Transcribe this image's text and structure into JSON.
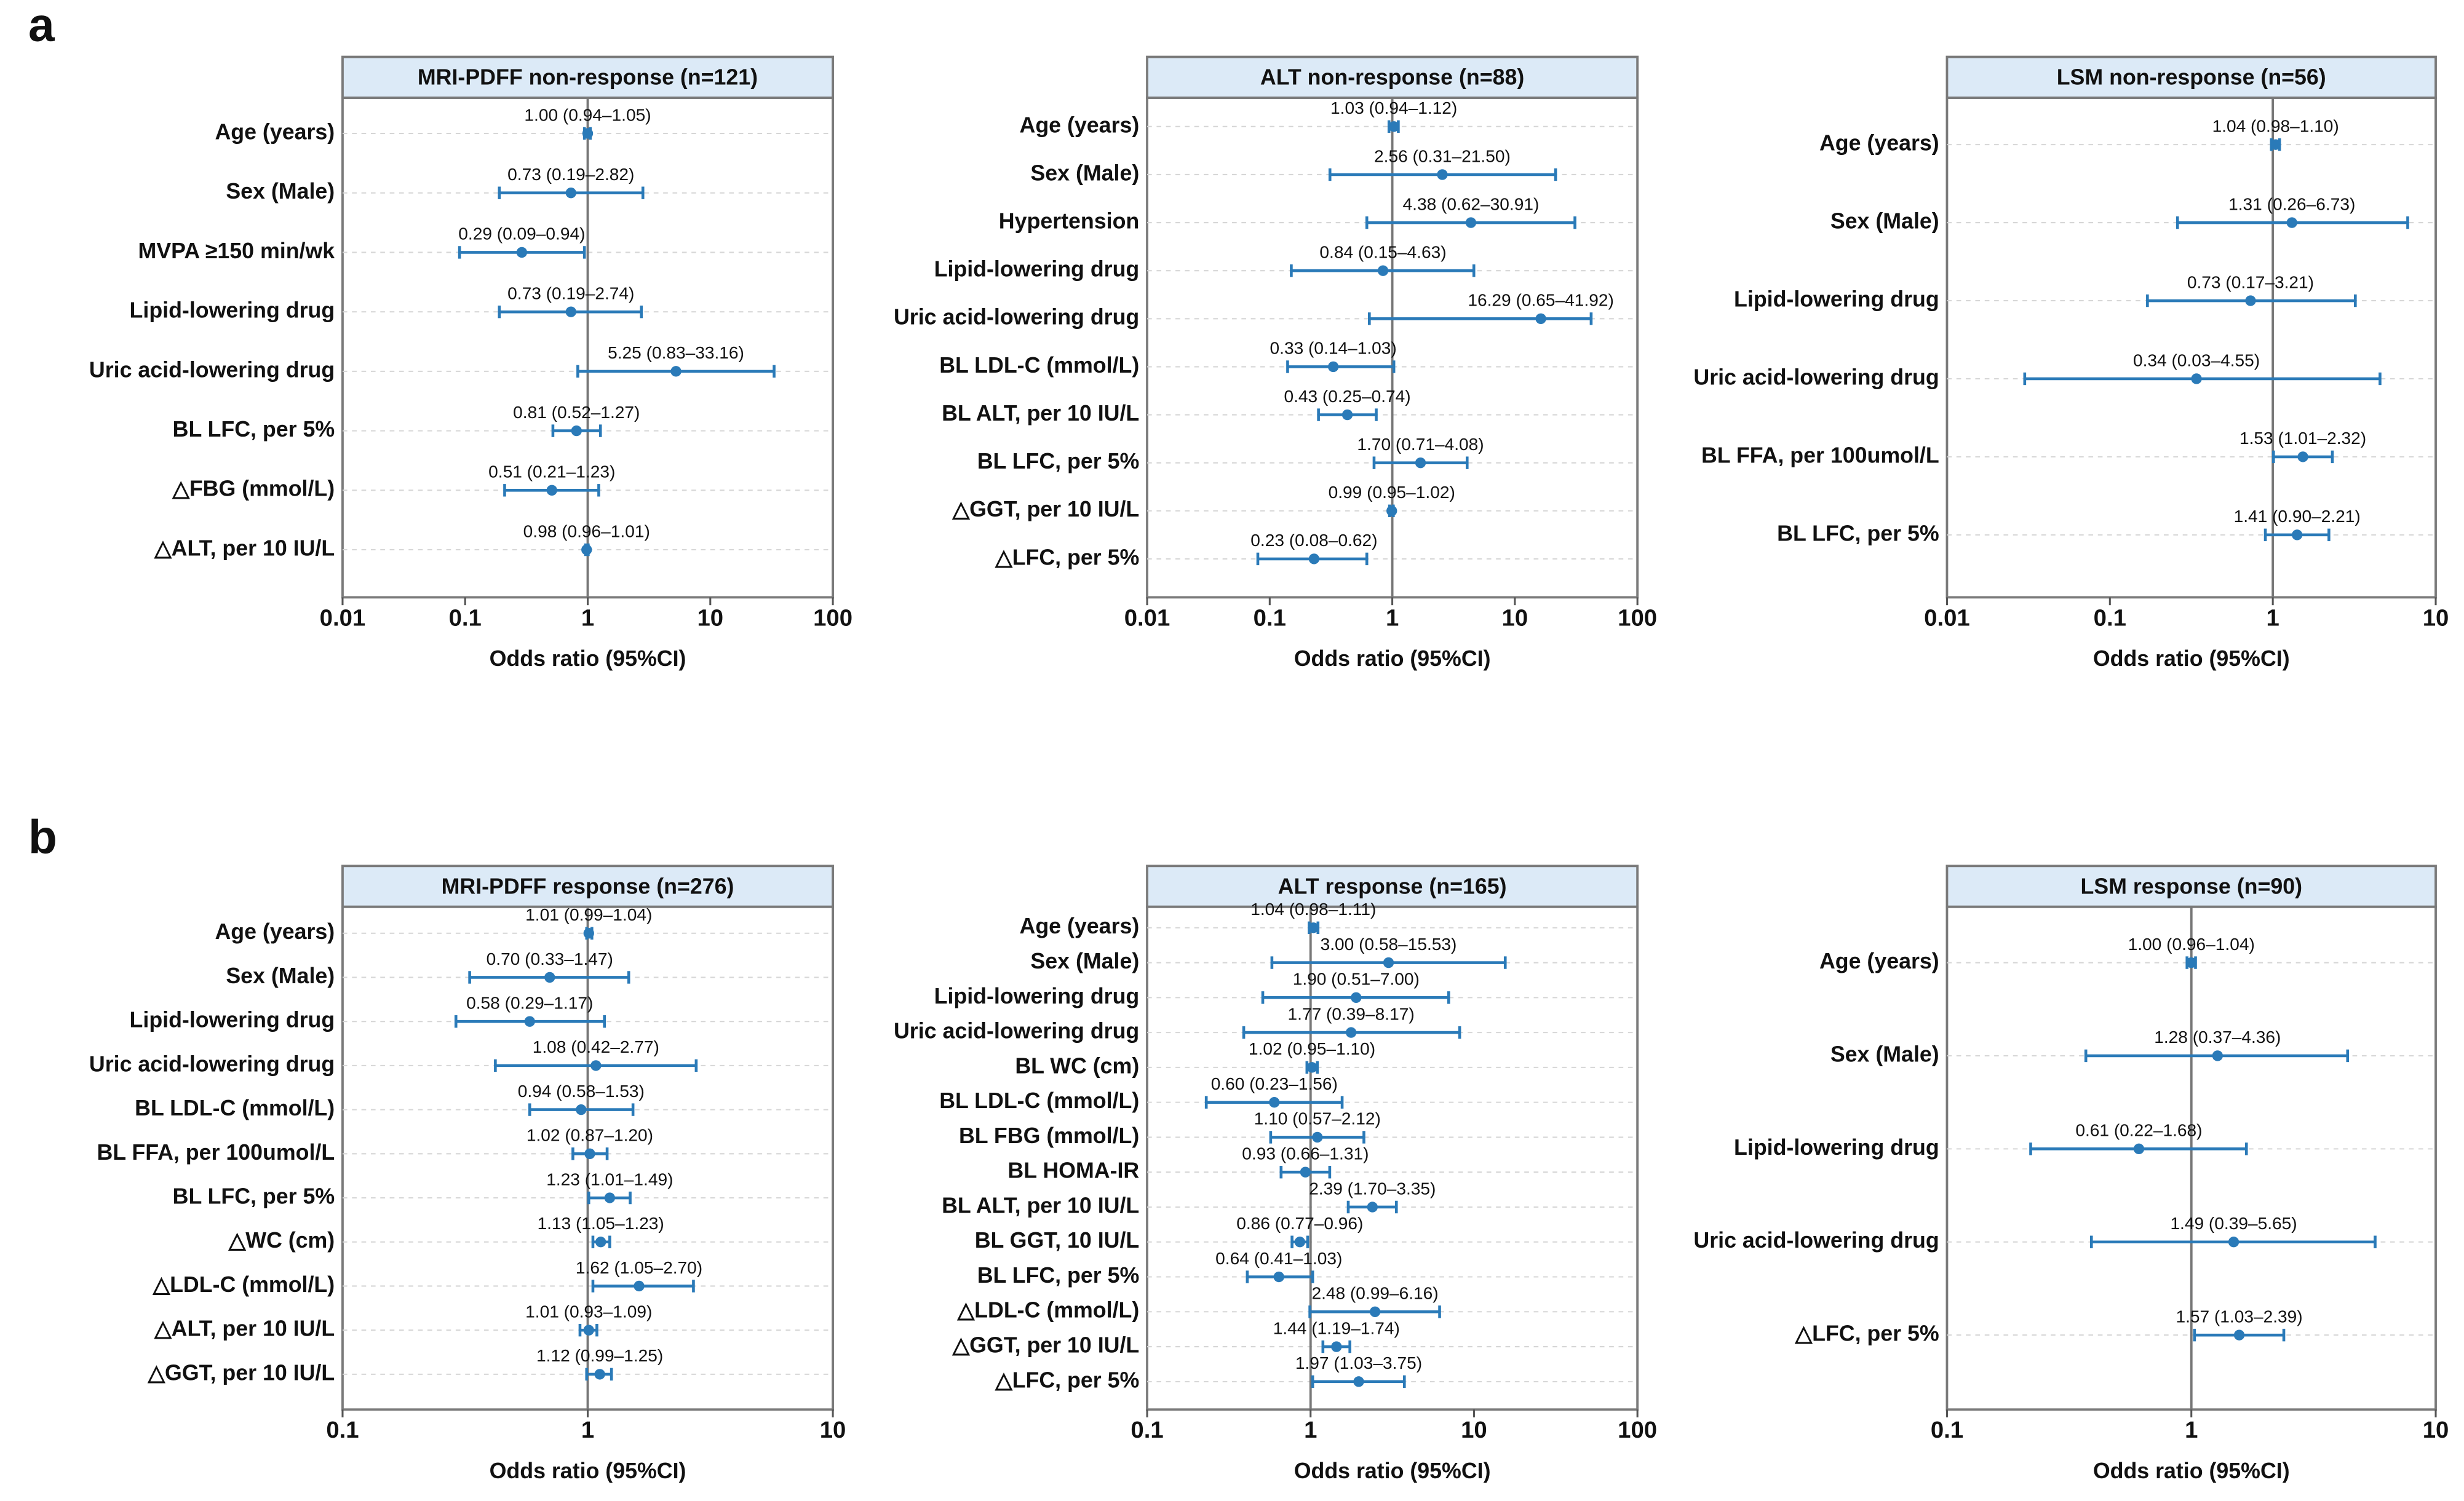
{
  "panel_labels": [
    "a",
    "b"
  ],
  "chart_data": [
    {
      "type": "forest",
      "title": "MRI-PDFF non-response (n=121)",
      "xlabel": "Odds ratio (95%CI)",
      "log_x": true,
      "xlim": [
        0.01,
        100
      ],
      "xticks": [
        0.01,
        0.1,
        1,
        10,
        100
      ],
      "ref_line": 1,
      "color": "#2a7ab8",
      "categories": [
        "Age (years)",
        "Sex (Male)",
        "MVPA ≥150 min/wk",
        "Lipid-lowering drug",
        "Uric acid-lowering drug",
        "BL LFC, per 5%",
        "△FBG (mmol/L)",
        "△ALT, per 10 IU/L"
      ],
      "values": [
        1.0,
        0.73,
        0.29,
        0.73,
        5.25,
        0.81,
        0.51,
        0.98
      ],
      "lower": [
        0.94,
        0.19,
        0.09,
        0.19,
        0.83,
        0.52,
        0.21,
        0.96
      ],
      "upper": [
        1.05,
        2.82,
        0.94,
        2.74,
        33.16,
        1.27,
        1.23,
        1.01
      ],
      "value_labels": [
        "1.00 (0.94–1.05)",
        "0.73 (0.19–2.82)",
        "0.29 (0.09–0.94)",
        "0.73 (0.19–2.74)",
        "5.25 (0.83–33.16)",
        "0.81 (0.52–1.27)",
        "0.51 (0.21–1.23)",
        "0.98 (0.96–1.01)"
      ]
    },
    {
      "type": "forest",
      "title": "ALT non-response (n=88)",
      "xlabel": "Odds ratio (95%CI)",
      "log_x": true,
      "xlim": [
        0.01,
        100
      ],
      "xticks": [
        0.01,
        0.1,
        1,
        10,
        100
      ],
      "ref_line": 1,
      "color": "#2a7ab8",
      "categories": [
        "Age (years)",
        "Sex (Male)",
        "Hypertension",
        "Lipid-lowering drug",
        "Uric acid-lowering drug",
        "BL LDL-C (mmol/L)",
        "BL ALT, per 10 IU/L",
        "BL LFC, per 5%",
        "△GGT, per 10 IU/L",
        "△LFC, per 5%"
      ],
      "values": [
        1.03,
        2.56,
        4.38,
        0.84,
        16.29,
        0.33,
        0.43,
        1.7,
        0.99,
        0.23
      ],
      "lower": [
        0.94,
        0.31,
        0.62,
        0.15,
        0.65,
        0.14,
        0.25,
        0.71,
        0.95,
        0.08
      ],
      "upper": [
        1.12,
        21.5,
        30.91,
        4.63,
        41.92,
        1.03,
        0.74,
        4.08,
        1.02,
        0.62
      ],
      "value_labels": [
        "1.03 (0.94–1.12)",
        "2.56 (0.31–21.50)",
        "4.38 (0.62–30.91)",
        "0.84 (0.15–4.63)",
        "16.29 (0.65–41.92)",
        "0.33 (0.14–1.03)",
        "0.43 (0.25–0.74)",
        "1.70 (0.71–4.08)",
        "0.99 (0.95–1.02)",
        "0.23 (0.08–0.62)"
      ]
    },
    {
      "type": "forest",
      "title": "LSM non-response (n=56)",
      "xlabel": "Odds ratio (95%CI)",
      "log_x": true,
      "xlim": [
        0.01,
        10
      ],
      "xticks": [
        0.01,
        0.1,
        1,
        10
      ],
      "ref_line": 1,
      "color": "#2a7ab8",
      "categories": [
        "Age (years)",
        "Sex (Male)",
        "Lipid-lowering drug",
        "Uric acid-lowering drug",
        "BL FFA, per 100umol/L",
        "BL LFC, per 5%"
      ],
      "values": [
        1.04,
        1.31,
        0.73,
        0.34,
        1.53,
        1.41
      ],
      "lower": [
        0.98,
        0.26,
        0.17,
        0.03,
        1.01,
        0.9
      ],
      "upper": [
        1.1,
        6.73,
        3.21,
        4.55,
        2.32,
        2.21
      ],
      "value_labels": [
        "1.04 (0.98–1.10)",
        "1.31 (0.26–6.73)",
        "0.73 (0.17–3.21)",
        "0.34 (0.03–4.55)",
        "1.53 (1.01–2.32)",
        "1.41 (0.90–2.21)"
      ]
    },
    {
      "type": "forest",
      "title": "MRI-PDFF response (n=276)",
      "xlabel": "Odds ratio (95%CI)",
      "log_x": true,
      "xlim": [
        0.1,
        10
      ],
      "xticks": [
        0.1,
        1,
        10
      ],
      "ref_line": 1,
      "color": "#2a7ab8",
      "categories": [
        "Age (years)",
        "Sex (Male)",
        "Lipid-lowering drug",
        "Uric acid-lowering drug",
        "BL LDL-C (mmol/L)",
        "BL FFA, per 100umol/L",
        "BL LFC, per 5%",
        "△WC (cm)",
        "△LDL-C (mmol/L)",
        "△ALT, per 10 IU/L",
        "△GGT, per 10 IU/L"
      ],
      "values": [
        1.01,
        0.7,
        0.58,
        1.08,
        0.94,
        1.02,
        1.23,
        1.13,
        1.62,
        1.01,
        1.12
      ],
      "lower": [
        0.99,
        0.33,
        0.29,
        0.42,
        0.58,
        0.87,
        1.01,
        1.05,
        1.05,
        0.93,
        0.99
      ],
      "upper": [
        1.04,
        1.47,
        1.17,
        2.77,
        1.53,
        1.2,
        1.49,
        1.23,
        2.7,
        1.09,
        1.25
      ],
      "value_labels": [
        "1.01 (0.99–1.04)",
        "0.70 (0.33–1.47)",
        "0.58 (0.29–1.17)",
        "1.08 (0.42–2.77)",
        "0.94 (0.58–1.53)",
        "1.02 (0.87–1.20)",
        "1.23 (1.01–1.49)",
        "1.13 (1.05–1.23)",
        "1.62 (1.05–2.70)",
        "1.01 (0.93–1.09)",
        "1.12 (0.99–1.25)"
      ]
    },
    {
      "type": "forest",
      "title": "ALT response (n=165)",
      "xlabel": "Odds ratio (95%CI)",
      "log_x": true,
      "xlim": [
        0.1,
        100
      ],
      "xticks": [
        0.1,
        1,
        10,
        100
      ],
      "ref_line": 1,
      "color": "#2a7ab8",
      "categories": [
        "Age (years)",
        "Sex (Male)",
        "Lipid-lowering drug",
        "Uric acid-lowering drug",
        "BL WC (cm)",
        "BL LDL-C (mmol/L)",
        "BL FBG (mmol/L)",
        "BL HOMA-IR",
        "BL ALT, per 10 IU/L",
        "BL GGT, 10 IU/L",
        "BL LFC, per 5%",
        "△LDL-C (mmol/L)",
        "△GGT, per 10 IU/L",
        "△LFC, per 5%"
      ],
      "values": [
        1.04,
        3.0,
        1.9,
        1.77,
        1.02,
        0.6,
        1.1,
        0.93,
        2.39,
        0.86,
        0.64,
        2.48,
        1.44,
        1.97
      ],
      "lower": [
        0.98,
        0.58,
        0.51,
        0.39,
        0.95,
        0.23,
        0.57,
        0.66,
        1.7,
        0.77,
        0.41,
        0.99,
        1.19,
        1.03
      ],
      "upper": [
        1.11,
        15.53,
        7.0,
        8.17,
        1.1,
        1.56,
        2.12,
        1.31,
        3.35,
        0.96,
        1.03,
        6.16,
        1.74,
        3.75
      ],
      "value_labels": [
        "1.04 (0.98–1.11)",
        "3.00 (0.58–15.53)",
        "1.90 (0.51–7.00)",
        "1.77 (0.39–8.17)",
        "1.02 (0.95–1.10)",
        "0.60 (0.23–1.56)",
        "1.10 (0.57–2.12)",
        "0.93 (0.66–1.31)",
        "2.39 (1.70–3.35)",
        "0.86 (0.77–0.96)",
        "0.64 (0.41–1.03)",
        "2.48 (0.99–6.16)",
        "1.44 (1.19–1.74)",
        "1.97 (1.03–3.75)"
      ]
    },
    {
      "type": "forest",
      "title": "LSM response (n=90)",
      "xlabel": "Odds ratio (95%CI)",
      "log_x": true,
      "xlim": [
        0.1,
        10
      ],
      "xticks": [
        0.1,
        1,
        10
      ],
      "ref_line": 1,
      "color": "#2a7ab8",
      "categories": [
        "Age (years)",
        "Sex (Male)",
        "Lipid-lowering drug",
        "Uric acid-lowering drug",
        "△LFC, per 5%"
      ],
      "values": [
        1.0,
        1.28,
        0.61,
        1.49,
        1.57
      ],
      "lower": [
        0.96,
        0.37,
        0.22,
        0.39,
        1.03
      ],
      "upper": [
        1.04,
        4.36,
        1.68,
        5.65,
        2.39
      ],
      "value_labels": [
        "1.00 (0.96–1.04)",
        "1.28 (0.37–4.36)",
        "0.61 (0.22–1.68)",
        "1.49 (0.39–5.65)",
        "1.57 (1.03–2.39)"
      ]
    }
  ]
}
